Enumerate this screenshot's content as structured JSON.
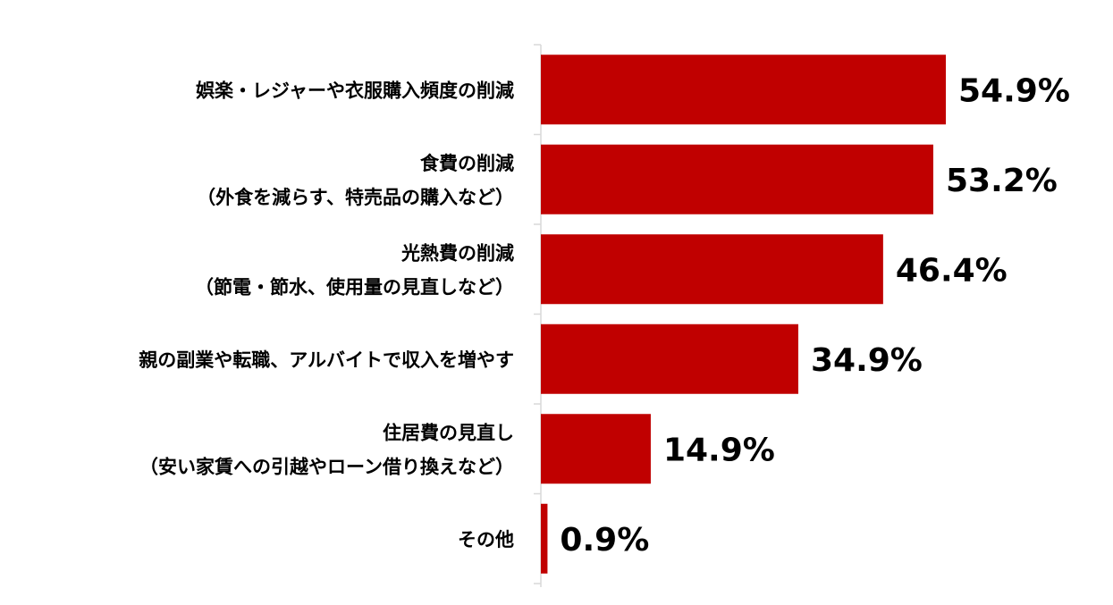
{
  "chart_data": {
    "type": "bar",
    "orientation": "horizontal",
    "categories": [
      [
        "娯楽・レジャーや衣服購入頻度の削減"
      ],
      [
        "食費の削減",
        "（外食を減らす、特売品の購入など）"
      ],
      [
        "光熱費の削減",
        "（節電・節水、使用量の見直しなど）"
      ],
      [
        "親の副業や転職、アルバイトで収入を増やす"
      ],
      [
        "住居費の見直し",
        "（安い家賃への引越やローン借り換えなど）"
      ],
      [
        "その他"
      ]
    ],
    "values": [
      54.9,
      53.2,
      46.4,
      34.9,
      14.9,
      0.9
    ],
    "value_labels": [
      "54.9%",
      "53.2%",
      "46.4%",
      "34.9%",
      "14.9%",
      "0.9%"
    ],
    "unit": "%",
    "xlim": [
      0,
      100
    ],
    "grid": false,
    "legend": "none",
    "bar_color": "#C00000",
    "axis_color": "#D9D9D9"
  }
}
